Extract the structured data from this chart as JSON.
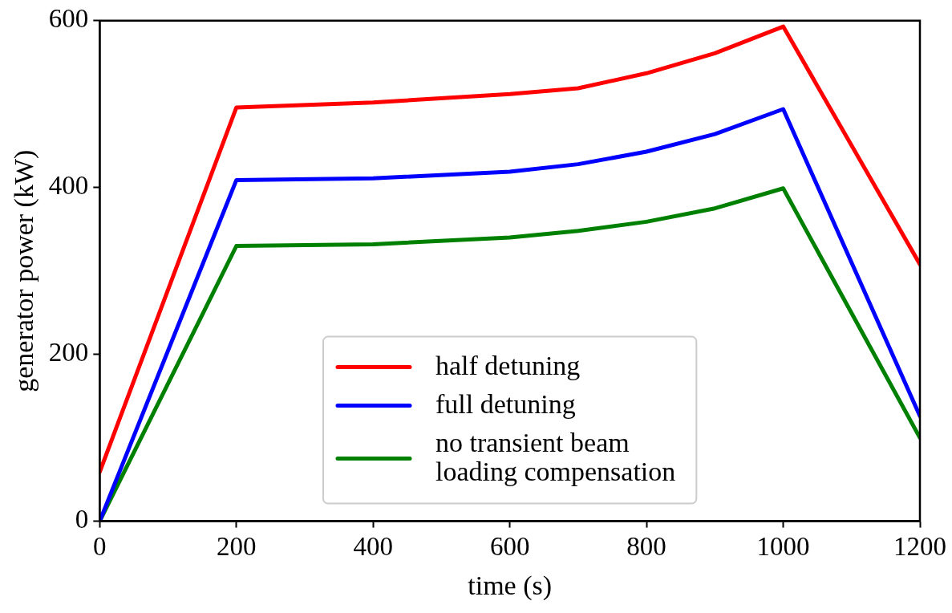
{
  "chart_data": {
    "type": "line",
    "xlabel": "time (s)",
    "ylabel": "generator power (kW)",
    "xlim": [
      0,
      1200
    ],
    "ylim": [
      0,
      600
    ],
    "xticks": [
      0,
      200,
      400,
      600,
      800,
      1000,
      1200
    ],
    "yticks": [
      0,
      200,
      400,
      600
    ],
    "grid": false,
    "legend": "bottom",
    "marker": "none",
    "line_style": "solid",
    "series": [
      {
        "name": "half detuning",
        "color": "#ff0000",
        "x": [
          0,
          200,
          400,
          600,
          700,
          800,
          900,
          1000,
          1200
        ],
        "values": [
          59,
          496,
          502,
          512,
          519,
          537,
          561,
          593,
          308
        ]
      },
      {
        "name": "full detuning",
        "color": "#0000ff",
        "x": [
          0,
          200,
          400,
          600,
          700,
          800,
          900,
          1000,
          1200
        ],
        "values": [
          0,
          409,
          411,
          419,
          428,
          443,
          464,
          494,
          126
        ]
      },
      {
        "name": "no transient beam loading compensation",
        "color": "#008000",
        "x": [
          0,
          200,
          400,
          600,
          700,
          800,
          900,
          1000,
          1200
        ],
        "values": [
          0,
          330,
          332,
          340,
          348,
          359,
          375,
          399,
          100
        ]
      }
    ]
  }
}
